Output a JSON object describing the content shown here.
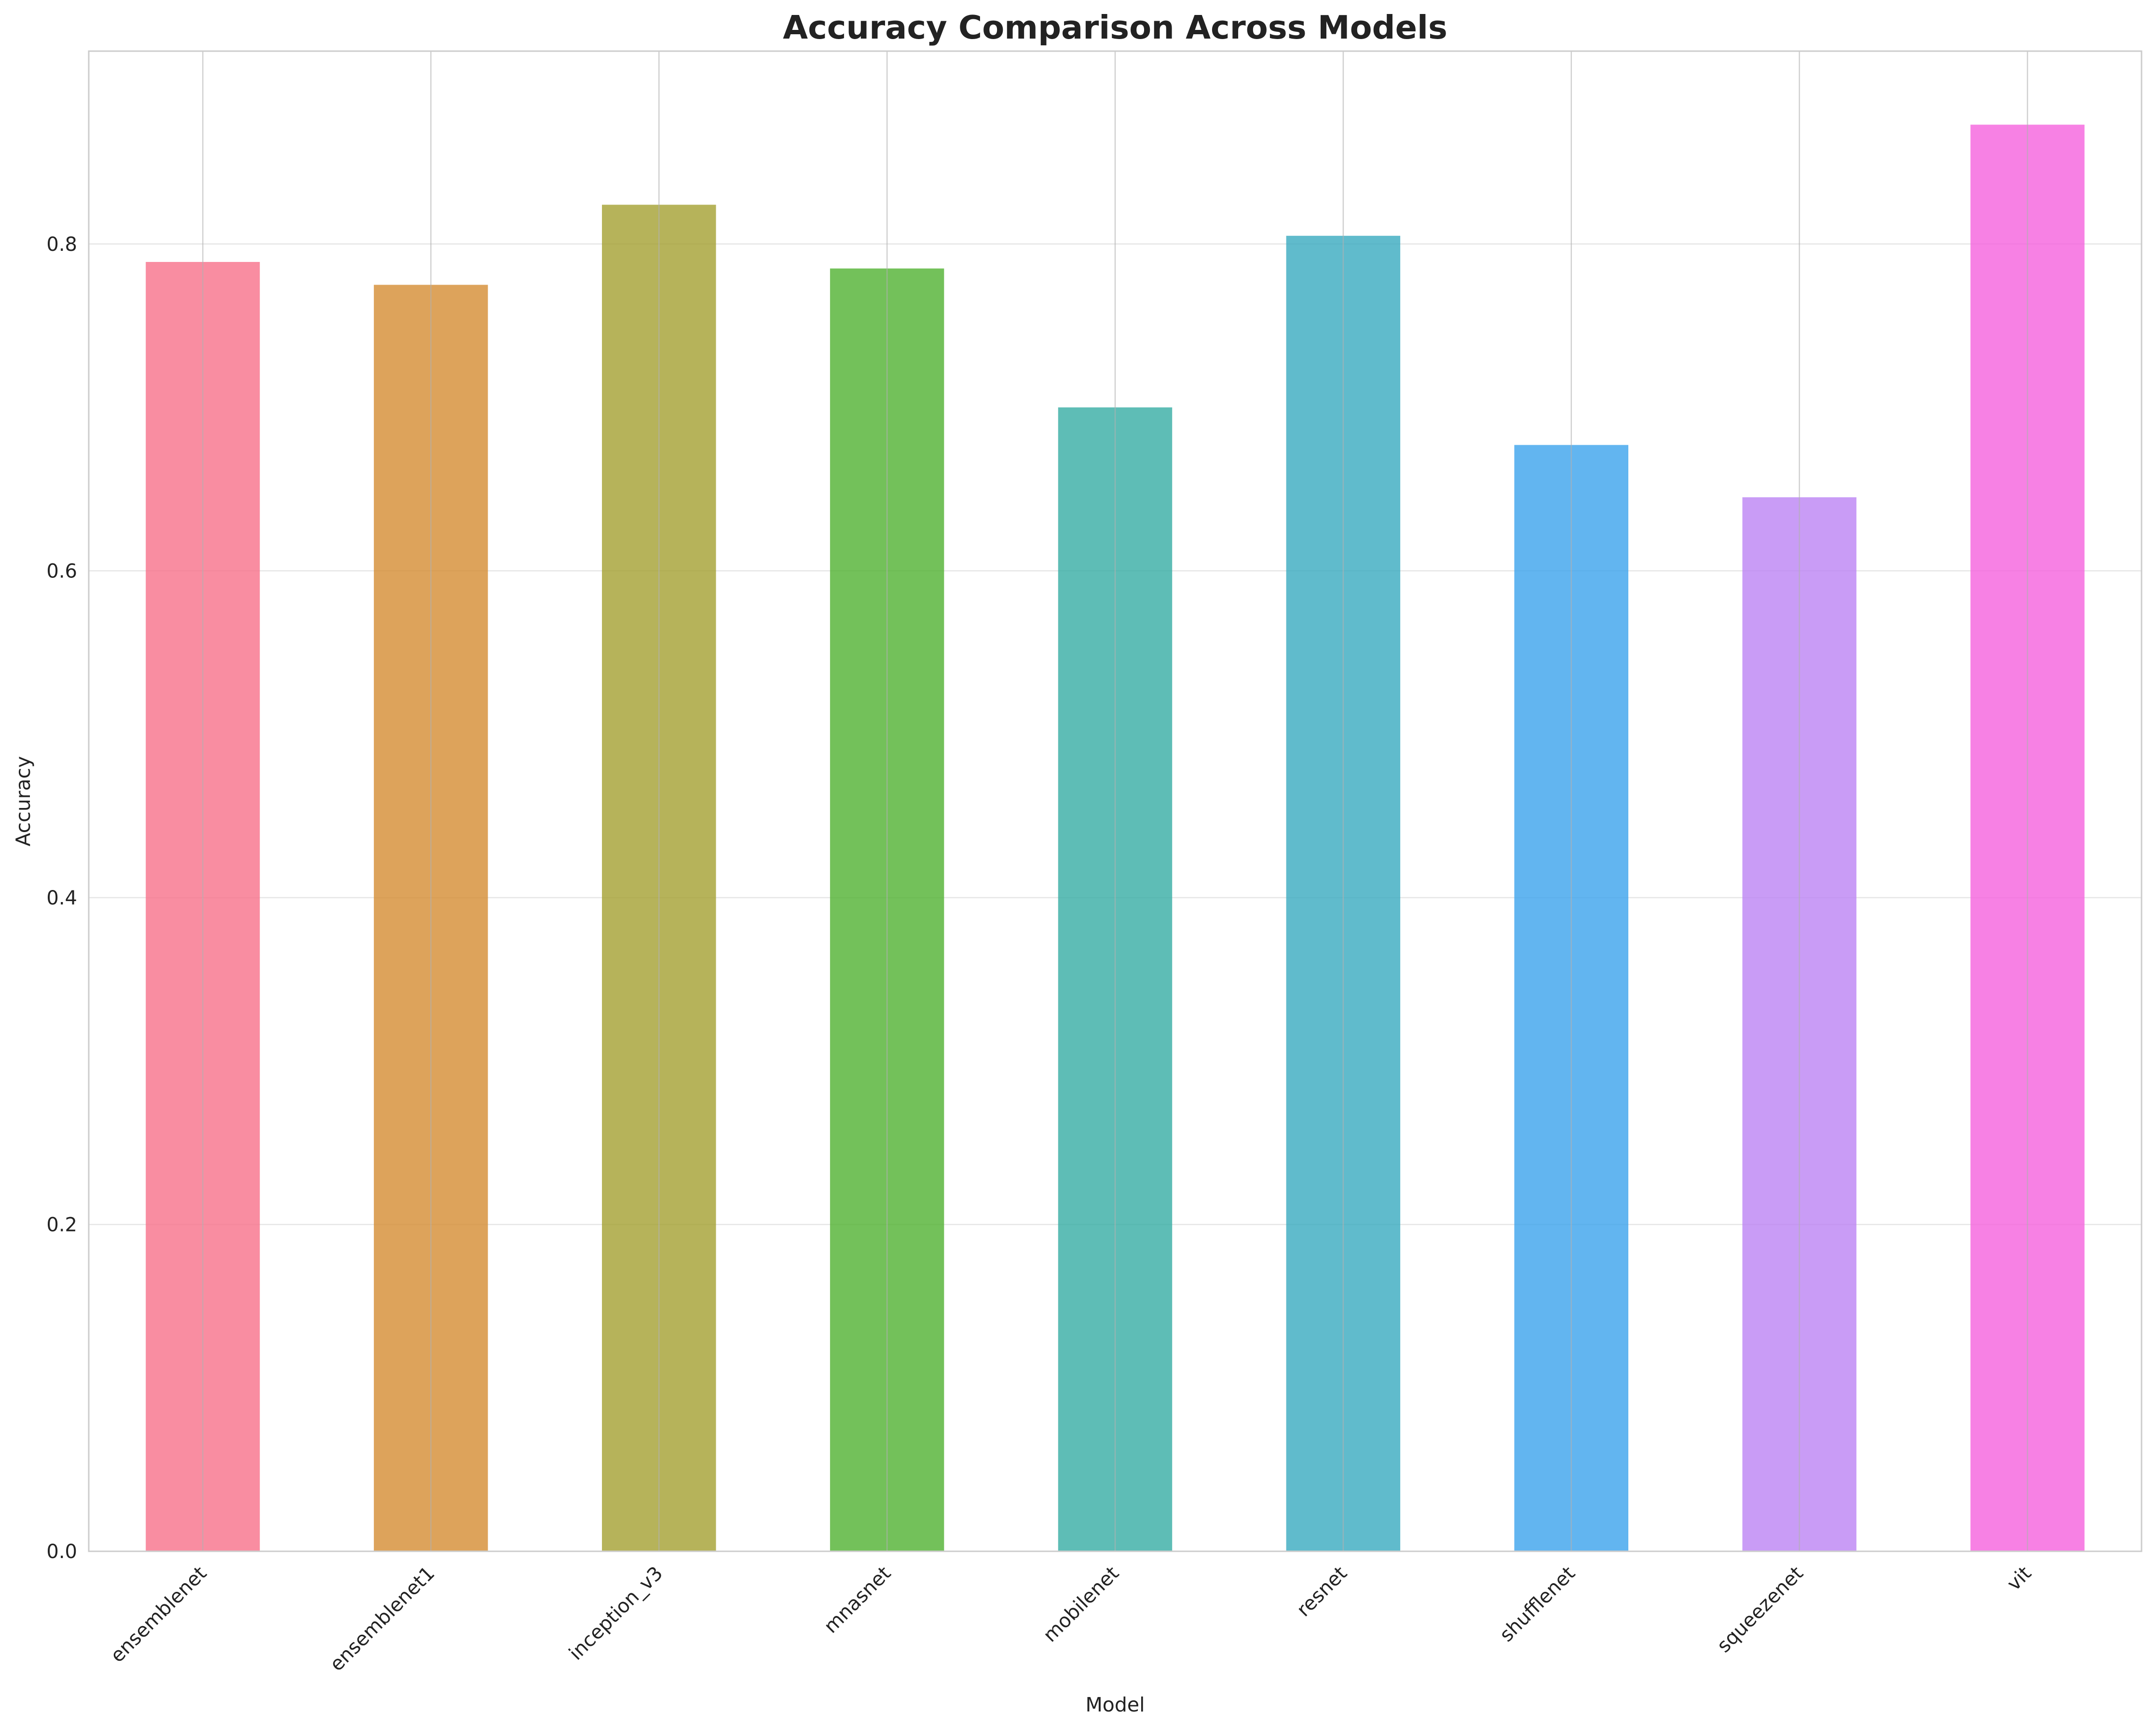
{
  "chart_data": {
    "type": "bar",
    "title": "Accuracy Comparison Across Models",
    "xlabel": "Model",
    "ylabel": "Accuracy",
    "categories": [
      "ensemblenet",
      "ensemblenet1",
      "inception_v3",
      "mnasnet",
      "mobilenet",
      "resnet",
      "shufflenet",
      "squeezenet",
      "vit"
    ],
    "values": [
      0.789,
      0.775,
      0.824,
      0.785,
      0.7,
      0.805,
      0.677,
      0.645,
      0.873
    ],
    "colors": [
      "#f77189",
      "#d58c32",
      "#a4a031",
      "#50b131",
      "#36ada4",
      "#38aabf",
      "#3ba3ec",
      "#bb83f4",
      "#f561dd"
    ],
    "ylim": [
      0,
      0.918
    ],
    "yticks": [
      0.0,
      0.2,
      0.4,
      0.6,
      0.8
    ],
    "ytick_labels": [
      "0.0",
      "0.2",
      "0.4",
      "0.6",
      "0.8"
    ],
    "grid": true,
    "legend": false
  }
}
